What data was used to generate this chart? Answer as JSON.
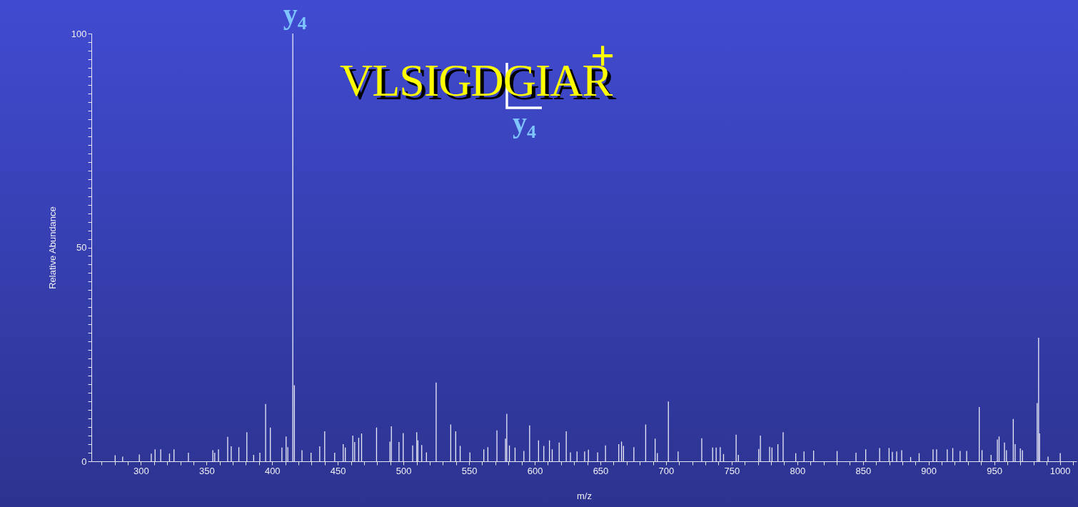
{
  "chart_data": {
    "type": "bar",
    "xlabel": "m/z",
    "ylabel": "Relative Abundance",
    "color": "#ececf8",
    "x": [
      280.4,
      286.1,
      298.8,
      307.9,
      310.8,
      315.1,
      321.8,
      325.2,
      336.2,
      354.8,
      356.2,
      359.1,
      366.1,
      368.8,
      374.6,
      380.7,
      385.9,
      390.6,
      395.0,
      398.6,
      407.4,
      410.6,
      411.9,
      415.7,
      416.9,
      422.7,
      429.6,
      436.2,
      440.0,
      447.6,
      454.1,
      455.7,
      461.4,
      462.8,
      465.9,
      468.1,
      479.5,
      489.7,
      490.8,
      496.6,
      499.8,
      507.0,
      510.1,
      511.0,
      513.9,
      517.5,
      524.9,
      536.0,
      539.8,
      543.2,
      550.6,
      561.2,
      564.3,
      571.2,
      577.7,
      578.7,
      580.7,
      585.0,
      591.7,
      596.1,
      602.9,
      606.9,
      611.2,
      613.3,
      618.6,
      624.0,
      627.2,
      632.2,
      638.0,
      640.9,
      647.9,
      653.9,
      664.0,
      666.1,
      667.6,
      675.5,
      684.5,
      691.7,
      693.4,
      701.8,
      709.2,
      727.2,
      735.5,
      738.2,
      741.3,
      743.8,
      753.4,
      755.1,
      770.6,
      771.9,
      778.9,
      780.7,
      785.2,
      789.2,
      798.8,
      805.1,
      812.4,
      830.3,
      844.7,
      852.1,
      862.7,
      869.9,
      872.4,
      875.7,
      879.5,
      886.3,
      892.8,
      903.4,
      906.1,
      914.2,
      918.4,
      924.0,
      929.0,
      938.6,
      940.7,
      947.6,
      952.4,
      953.7,
      957.8,
      959.3,
      964.5,
      965.9,
      969.9,
      971.5,
      982.7,
      983.8,
      984.5,
      991.0,
      1000.3
    ],
    "values": [
      1.4,
      1.1,
      1.6,
      1.8,
      2.8,
      2.8,
      1.8,
      2.8,
      2.0,
      2.6,
      2.0,
      2.8,
      5.7,
      3.5,
      3.3,
      6.8,
      1.5,
      2.0,
      13.4,
      7.9,
      3.2,
      5.8,
      3.3,
      100,
      17.8,
      2.6,
      2.0,
      3.5,
      7.0,
      2.0,
      4.0,
      3.2,
      6.0,
      4.5,
      5.5,
      6.5,
      7.9,
      4.6,
      8.2,
      4.5,
      6.6,
      3.7,
      6.8,
      4.9,
      3.8,
      2.1,
      18.4,
      8.6,
      7.0,
      3.6,
      2.1,
      2.8,
      3.3,
      7.2,
      5.3,
      11.1,
      3.7,
      3.2,
      2.4,
      8.4,
      4.9,
      3.6,
      4.9,
      2.8,
      4.4,
      7.0,
      2.1,
      2.3,
      2.3,
      2.7,
      2.1,
      3.7,
      4.0,
      4.6,
      3.6,
      3.3,
      8.6,
      5.3,
      1.9,
      14.0,
      2.3,
      5.4,
      3.2,
      3.2,
      3.3,
      1.7,
      6.2,
      1.5,
      2.9,
      6.0,
      3.4,
      3.2,
      4.0,
      6.8,
      1.9,
      2.3,
      2.5,
      2.4,
      2.0,
      2.8,
      3.1,
      3.1,
      2.2,
      2.3,
      2.6,
      1.0,
      1.9,
      2.8,
      2.8,
      2.8,
      3.1,
      2.4,
      2.4,
      12.7,
      2.6,
      1.5,
      5.1,
      5.8,
      4.4,
      2.6,
      9.9,
      4.0,
      3.0,
      2.6,
      13.6,
      28.9,
      6.5,
      1.1,
      1.9
    ],
    "xlim": [
      265,
      1010
    ],
    "xticks": [
      {
        "value": 270,
        "label": null
      },
      {
        "value": 280,
        "label": null
      },
      {
        "value": 290,
        "label": null
      },
      300,
      {
        "value": 310,
        "label": null
      },
      {
        "value": 320,
        "label": null
      },
      {
        "value": 330,
        "label": null
      },
      {
        "value": 340,
        "label": null
      },
      350,
      {
        "value": 360,
        "label": null
      },
      {
        "value": 370,
        "label": null
      },
      {
        "value": 380,
        "label": null
      },
      {
        "value": 390,
        "label": null
      },
      400,
      {
        "value": 410,
        "label": null
      },
      {
        "value": 420,
        "label": null
      },
      {
        "value": 430,
        "label": null
      },
      {
        "value": 440,
        "label": null
      },
      450,
      {
        "value": 460,
        "label": null
      },
      {
        "value": 470,
        "label": null
      },
      {
        "value": 480,
        "label": null
      },
      {
        "value": 490,
        "label": null
      },
      500,
      {
        "value": 510,
        "label": null
      },
      {
        "value": 520,
        "label": null
      },
      {
        "value": 530,
        "label": null
      },
      {
        "value": 540,
        "label": null
      },
      550,
      {
        "value": 560,
        "label": null
      },
      {
        "value": 570,
        "label": null
      },
      {
        "value": 580,
        "label": null
      },
      {
        "value": 590,
        "label": null
      },
      600,
      {
        "value": 610,
        "label": null
      },
      {
        "value": 620,
        "label": null
      },
      {
        "value": 630,
        "label": null
      },
      {
        "value": 640,
        "label": null
      },
      650,
      {
        "value": 660,
        "label": null
      },
      {
        "value": 670,
        "label": null
      },
      {
        "value": 680,
        "label": null
      },
      {
        "value": 690,
        "label": null
      },
      700,
      {
        "value": 710,
        "label": null
      },
      {
        "value": 720,
        "label": null
      },
      {
        "value": 730,
        "label": null
      },
      {
        "value": 740,
        "label": null
      },
      750,
      {
        "value": 760,
        "label": null
      },
      {
        "value": 770,
        "label": null
      },
      {
        "value": 780,
        "label": null
      },
      {
        "value": 790,
        "label": null
      },
      800,
      {
        "value": 810,
        "label": null
      },
      {
        "value": 820,
        "label": null
      },
      {
        "value": 830,
        "label": null
      },
      {
        "value": 840,
        "label": null
      },
      850,
      {
        "value": 860,
        "label": null
      },
      {
        "value": 870,
        "label": null
      },
      {
        "value": 880,
        "label": null
      },
      {
        "value": 890,
        "label": null
      },
      900,
      {
        "value": 910,
        "label": null
      },
      {
        "value": 920,
        "label": null
      },
      {
        "value": 930,
        "label": null
      },
      {
        "value": 940,
        "label": null
      },
      950,
      {
        "value": 960,
        "label": null
      },
      {
        "value": 970,
        "label": null
      },
      {
        "value": 980,
        "label": null
      },
      {
        "value": 990,
        "label": null
      },
      1000,
      {
        "value": 1010,
        "label": null
      }
    ],
    "ylim": [
      0,
      100
    ],
    "yticks": [
      0,
      {
        "value": 2,
        "label": null
      },
      {
        "value": 4,
        "label": null
      },
      {
        "value": 6,
        "label": null
      },
      {
        "value": 8,
        "label": null
      },
      {
        "value": 10,
        "label": null
      },
      {
        "value": 12,
        "label": null
      },
      {
        "value": 14,
        "label": null
      },
      {
        "value": 16,
        "label": null
      },
      {
        "value": 18,
        "label": null
      },
      {
        "value": 20,
        "label": null
      },
      {
        "value": 22,
        "label": null
      },
      {
        "value": 24,
        "label": null
      },
      {
        "value": 26,
        "label": null
      },
      {
        "value": 28,
        "label": null
      },
      {
        "value": 30,
        "label": null
      },
      {
        "value": 32,
        "label": null
      },
      {
        "value": 34,
        "label": null
      },
      {
        "value": 36,
        "label": null
      },
      {
        "value": 38,
        "label": null
      },
      {
        "value": 40,
        "label": null
      },
      {
        "value": 42,
        "label": null
      },
      {
        "value": 44,
        "label": null
      },
      {
        "value": 46,
        "label": null
      },
      {
        "value": 48,
        "label": null
      },
      50,
      {
        "value": 52,
        "label": null
      },
      {
        "value": 54,
        "label": null
      },
      {
        "value": 56,
        "label": null
      },
      {
        "value": 58,
        "label": null
      },
      {
        "value": 60,
        "label": null
      },
      {
        "value": 62,
        "label": null
      },
      {
        "value": 64,
        "label": null
      },
      {
        "value": 66,
        "label": null
      },
      {
        "value": 68,
        "label": null
      },
      {
        "value": 70,
        "label": null
      },
      {
        "value": 72,
        "label": null
      },
      {
        "value": 74,
        "label": null
      },
      {
        "value": 76,
        "label": null
      },
      {
        "value": 78,
        "label": null
      },
      {
        "value": 80,
        "label": null
      },
      {
        "value": 82,
        "label": null
      },
      {
        "value": 84,
        "label": null
      },
      {
        "value": 86,
        "label": null
      },
      {
        "value": 88,
        "label": null
      },
      {
        "value": 90,
        "label": null
      },
      {
        "value": 92,
        "label": null
      },
      {
        "value": 94,
        "label": null
      },
      {
        "value": 96,
        "label": null
      },
      {
        "value": 98,
        "label": null
      },
      100
    ],
    "annotations": [
      {
        "text": "y$_{4}$",
        "x": 415.7,
        "y": 100
      },
      "VLSIGDGIAR$^{+}$",
      "y$_{4}$"
    ]
  }
}
